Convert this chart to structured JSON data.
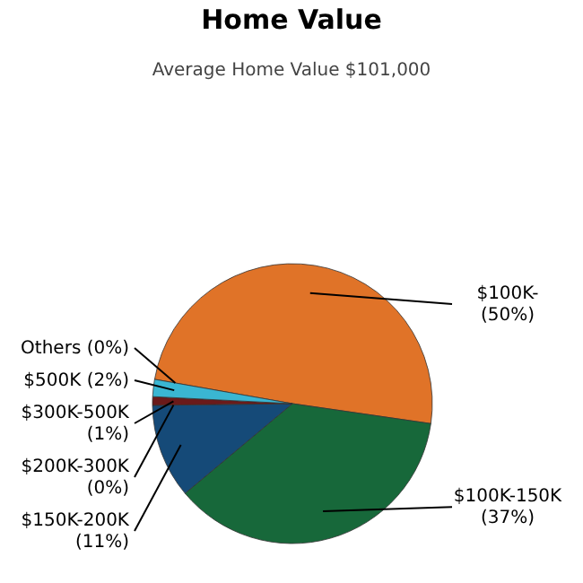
{
  "chart_data": {
    "type": "pie",
    "title": "Home Value",
    "subtitle": "Average Home Value  $101,000",
    "categories": [
      "$100K-",
      "$100K-150K",
      "$150K-200K",
      "$200K-300K",
      "$300K-500K",
      "$500K",
      "Others"
    ],
    "values": [
      50,
      37,
      11,
      0,
      1,
      2,
      0
    ],
    "value_labels": [
      "(50%)",
      "(37%)",
      "(11%)",
      "(0%)",
      "(1%)",
      "(2%)",
      "(0%)"
    ],
    "colors": [
      "#e07328",
      "#17683a",
      "#154a78",
      "#8a8a8a",
      "#6a1a1a",
      "#3ab6d2",
      "#9a9a9a"
    ],
    "legend": false
  }
}
